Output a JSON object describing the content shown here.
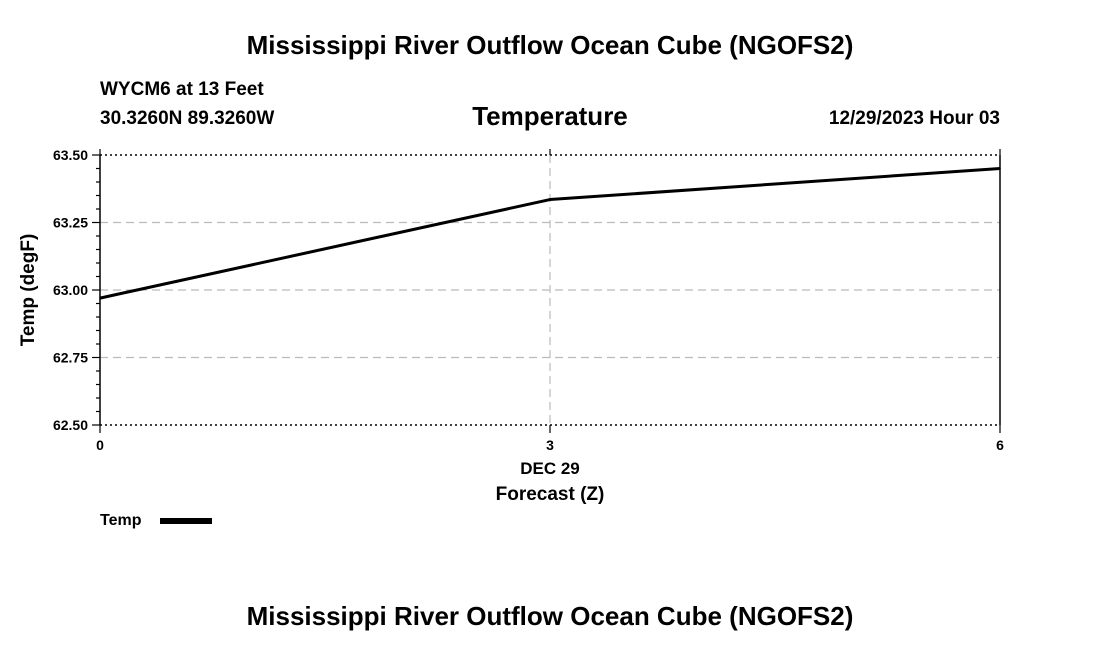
{
  "header": {
    "title": "Mississippi River Outflow Ocean Cube (NGOFS2)",
    "station": "WYCM6 at 13 Feet",
    "coords": "30.3260N  89.3260W",
    "timestamp": "12/29/2023 Hour 03"
  },
  "footer": {
    "title": "Mississippi River Outflow Ocean Cube (NGOFS2)"
  },
  "chart_data": {
    "type": "line",
    "title": "Temperature",
    "xlabel": "Forecast (Z)",
    "ylabel": "Temp (degF)",
    "x_date_label": "DEC 29",
    "xlim": [
      0,
      6
    ],
    "ylim": [
      62.5,
      63.5
    ],
    "x_ticks": [
      0,
      3,
      6
    ],
    "x_tick_labels": [
      "0",
      "3",
      "6"
    ],
    "y_ticks": [
      62.5,
      62.75,
      63.0,
      63.25,
      63.5
    ],
    "y_tick_labels": [
      "62.50",
      "62.75",
      "63.00",
      "63.25",
      "63.50"
    ],
    "grid": true,
    "legend_position": "bottom-left",
    "series": [
      {
        "name": "Temp",
        "color": "#000000",
        "x": [
          0,
          3,
          6
        ],
        "values": [
          62.97,
          63.335,
          63.45
        ]
      }
    ]
  }
}
